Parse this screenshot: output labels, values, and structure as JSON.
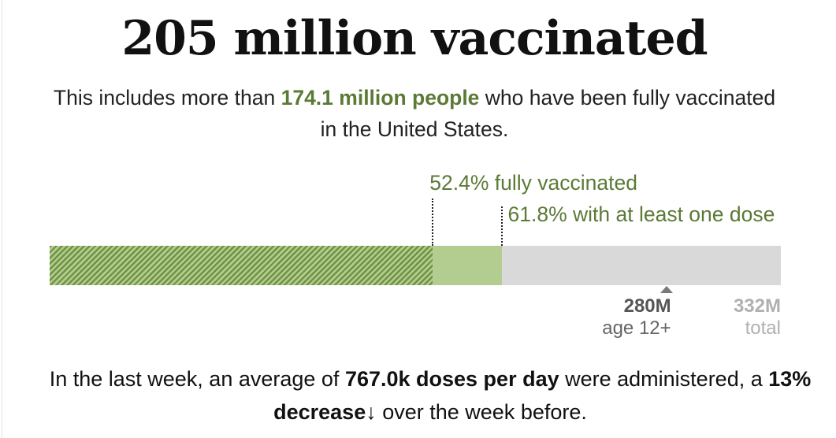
{
  "title": "205 million vaccinated",
  "subtitle": {
    "pre": "This includes more than ",
    "highlight": "174.1 million people",
    "post": " who have been fully vaccinated in the United States."
  },
  "chart_data": {
    "type": "bar",
    "orientation": "horizontal-stacked",
    "unit": "millions of people",
    "total": 332,
    "segments": [
      {
        "name": "fully vaccinated",
        "value": 174.1,
        "pct": 52.4,
        "label": "52.4% fully vaccinated",
        "color": "#6e9443",
        "pattern": "hatched"
      },
      {
        "name": "at least one dose",
        "value": 205.2,
        "pct": 61.8,
        "label": "61.8% with at least one dose",
        "color": "#b3cc90"
      }
    ],
    "remainder_color": "#d9d9d9",
    "xlim": [
      0,
      332
    ],
    "ticks": [
      {
        "value": 280,
        "label": "280M",
        "sublabel": "age 12+",
        "marker": true
      },
      {
        "value": 332,
        "label": "332M",
        "sublabel": "total",
        "marker": false
      }
    ]
  },
  "footer": {
    "p1": "In the last week, an average of ",
    "b1": "767.0k doses per day",
    "p2": " were administered, a ",
    "b2": "13% decrease",
    "arrow": "↓",
    "p3": " over the week before."
  }
}
